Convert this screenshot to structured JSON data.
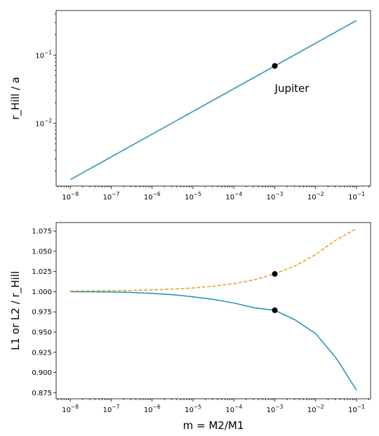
{
  "chart_data": [
    {
      "type": "line",
      "xscale": "log",
      "yscale": "log",
      "xlim": [
        4.5e-09,
        0.22
      ],
      "ylim": [
        0.0012,
        0.45
      ],
      "xticks": [
        {
          "value": 1e-08,
          "base": "10",
          "exp": "−8"
        },
        {
          "value": 1e-07,
          "base": "10",
          "exp": "−7"
        },
        {
          "value": 1e-06,
          "base": "10",
          "exp": "−6"
        },
        {
          "value": 1e-05,
          "base": "10",
          "exp": "−5"
        },
        {
          "value": 0.0001,
          "base": "10",
          "exp": "−4"
        },
        {
          "value": 0.001,
          "base": "10",
          "exp": "−3"
        },
        {
          "value": 0.01,
          "base": "10",
          "exp": "−2"
        },
        {
          "value": 0.1,
          "base": "10",
          "exp": "−1"
        }
      ],
      "yticks": [
        {
          "value": 0.01,
          "base": "10",
          "exp": "−2"
        },
        {
          "value": 0.1,
          "base": "10",
          "exp": "−1"
        }
      ],
      "xlabel": "",
      "ylabel": "r_Hill / a",
      "grid": false,
      "series": [
        {
          "color": "#1f8fb0",
          "dash": "solid",
          "points": [
            [
              1e-08,
              0.00149
            ],
            [
              0.1,
              0.3218
            ]
          ]
        }
      ],
      "markers": [
        {
          "x": 0.001,
          "y": 0.0693,
          "color": "#000000"
        }
      ],
      "annotation": {
        "text": "Jupiter",
        "x": 0.001,
        "y": 0.0322
      }
    },
    {
      "type": "line",
      "xscale": "log",
      "yscale": "linear",
      "xlim": [
        4.5e-09,
        0.22
      ],
      "ylim": [
        0.8675,
        1.0855
      ],
      "xticks": [
        {
          "value": 1e-08,
          "base": "10",
          "exp": "−8"
        },
        {
          "value": 1e-07,
          "base": "10",
          "exp": "−7"
        },
        {
          "value": 1e-06,
          "base": "10",
          "exp": "−6"
        },
        {
          "value": 1e-05,
          "base": "10",
          "exp": "−5"
        },
        {
          "value": 0.0001,
          "base": "10",
          "exp": "−4"
        },
        {
          "value": 0.001,
          "base": "10",
          "exp": "−3"
        },
        {
          "value": 0.01,
          "base": "10",
          "exp": "−2"
        },
        {
          "value": 0.1,
          "base": "10",
          "exp": "−1"
        }
      ],
      "yticks": [
        {
          "value": 0.875,
          "label": "0.875"
        },
        {
          "value": 0.9,
          "label": "0.900"
        },
        {
          "value": 0.925,
          "label": "0.925"
        },
        {
          "value": 0.95,
          "label": "0.950"
        },
        {
          "value": 0.975,
          "label": "0.975"
        },
        {
          "value": 1.0,
          "label": "1.000"
        },
        {
          "value": 1.025,
          "label": "1.025"
        },
        {
          "value": 1.05,
          "label": "1.050"
        },
        {
          "value": 1.075,
          "label": "1.075"
        }
      ],
      "xlabel": "m = M2/M1",
      "ylabel": "L1 or L2 / r_Hill",
      "grid": false,
      "series": [
        {
          "color": "#1f8fb0",
          "dash": "solid",
          "points": [
            [
              1e-08,
              0.9999
            ],
            [
              3.16e-08,
              0.9998
            ],
            [
              1e-07,
              0.9996
            ],
            [
              3.16e-07,
              0.9991
            ],
            [
              1e-06,
              0.9979
            ],
            [
              3.16e-06,
              0.9963
            ],
            [
              1e-05,
              0.9937
            ],
            [
              3.16e-05,
              0.9905
            ],
            [
              0.0001,
              0.986
            ],
            [
              0.000316,
              0.98
            ],
            [
              0.001,
              0.977
            ],
            [
              0.00316,
              0.965
            ],
            [
              0.01,
              0.948
            ],
            [
              0.0316,
              0.918
            ],
            [
              0.1,
              0.878
            ]
          ]
        },
        {
          "color": "#e0a020",
          "dash": "dashed",
          "points": [
            [
              1e-08,
              1.0007
            ],
            [
              3.16e-08,
              1.001
            ],
            [
              1e-07,
              1.0013
            ],
            [
              3.16e-07,
              1.0016
            ],
            [
              1e-06,
              1.0022
            ],
            [
              3.16e-06,
              1.0032
            ],
            [
              1e-05,
              1.0046
            ],
            [
              3.16e-05,
              1.0068
            ],
            [
              0.0001,
              1.01
            ],
            [
              0.000316,
              1.0147
            ],
            [
              0.001,
              1.022
            ],
            [
              0.00316,
              1.032
            ],
            [
              0.01,
              1.046
            ],
            [
              0.0316,
              1.064
            ],
            [
              0.1,
              1.078
            ]
          ]
        }
      ],
      "markers": [
        {
          "x": 0.001,
          "y": 1.022,
          "color": "#000000"
        },
        {
          "x": 0.001,
          "y": 0.977,
          "color": "#000000"
        }
      ]
    }
  ]
}
